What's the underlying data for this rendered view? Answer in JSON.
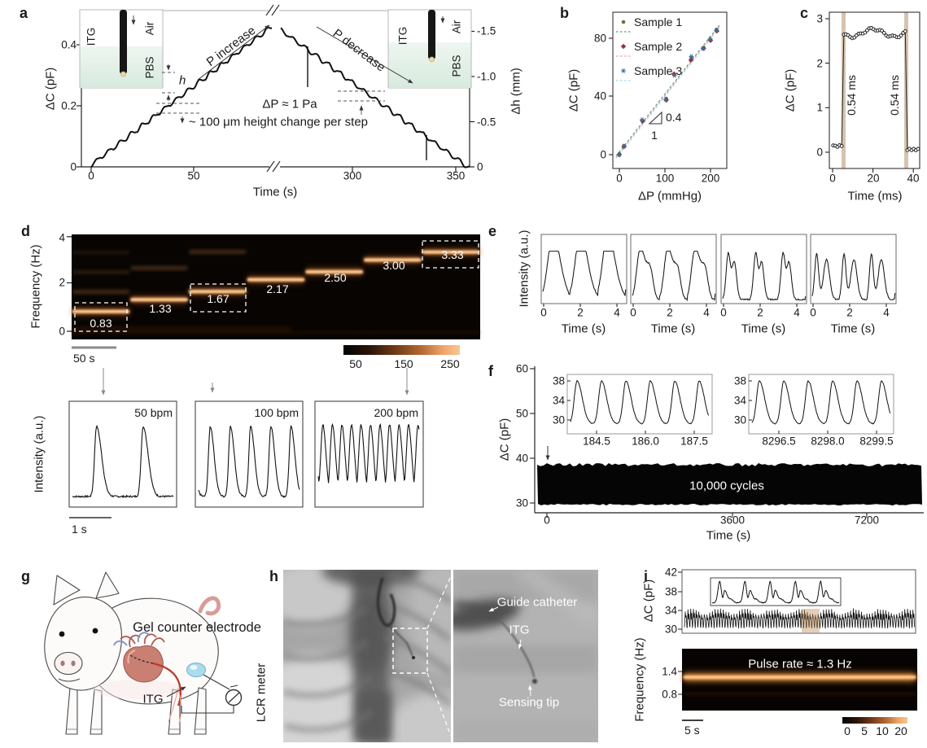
{
  "figure": {
    "background": "#ffffff"
  },
  "colors": {
    "pbs_fill": "#e7f2ea",
    "highlight_band": "#cdb49c",
    "spectrogram_hot": "#f5ad6e",
    "catheter_red": "#bf3b2b",
    "electrode_blue": "#abdbec",
    "sample1": "#5c7a2e",
    "sample2": "#96353c",
    "sample3": "#39719c"
  },
  "panels": {
    "a": {
      "label": "a",
      "ylabel_left": "ΔC (pF)",
      "ylabel_right": "Δh (mm)",
      "xlabel": "Time (s)",
      "annotations": {
        "p_increase": "P increase",
        "p_decrease": "P decrease",
        "delta_p": "ΔP ≈ 1 Pa",
        "step_note": "~ 100 μm height change per step",
        "h_marker": "h"
      },
      "inset_left": {
        "device": "ITG",
        "top_medium": "Air",
        "bottom_medium": "PBS"
      },
      "inset_right": {
        "device": "ITG",
        "top_medium": "Air",
        "bottom_medium": "PBS"
      }
    },
    "b": {
      "label": "b",
      "ylabel": "ΔC (pF)",
      "xlabel": "ΔP (mmHg)",
      "legend": [
        "Sample 1",
        "Sample 2",
        "Sample 3"
      ],
      "slope_rise": "0.4",
      "slope_run": "1"
    },
    "c": {
      "label": "c",
      "ylabel": "ΔC (pF)",
      "xlabel": "Time (ms)",
      "rise_label": "0.54 ms",
      "fall_label": "0.54 ms"
    },
    "d": {
      "label": "d",
      "ylabel": "Frequency (Hz)",
      "freq_labels": [
        "0.83",
        "1.33",
        "1.67",
        "2.17",
        "2.50",
        "3.00",
        "3.33"
      ],
      "scalebar": "50 s",
      "colorbar_ticks": [
        "50",
        "150",
        "250"
      ],
      "trace_ylabel": "Intensity (a.u.)",
      "trace_labels": [
        "50 bpm",
        "100 bpm",
        "200 bpm"
      ],
      "trace_scalebar": "1 s"
    },
    "e": {
      "label": "e",
      "ylabel": "Intensity (a.u.)",
      "xlabel": "Time (s)",
      "xticks": [
        "0",
        "2",
        "4"
      ]
    },
    "f": {
      "label": "f",
      "ylabel": "ΔC (pF)",
      "xlabel": "Time (s)",
      "yticks": [
        "30",
        "40",
        "50",
        "60"
      ],
      "xticks": [
        "0",
        "3600",
        "7200"
      ],
      "annotation": "10,000 cycles",
      "inset1": {
        "yticks": [
          "30",
          "34",
          "38"
        ],
        "xticks": [
          "184.5",
          "186.0",
          "187.5"
        ]
      },
      "inset2": {
        "yticks": [
          "30",
          "34",
          "38"
        ],
        "xticks": [
          "8296.5",
          "8298.0",
          "8299.5"
        ]
      }
    },
    "g": {
      "label": "g",
      "electrode_label": "Gel counter electrode",
      "device_label": "ITG",
      "meter_label": "LCR meter"
    },
    "h": {
      "label": "h",
      "guide_label": "Guide catheter",
      "device_label": "ITG",
      "tip_label": "Sensing tip"
    },
    "i": {
      "label": "i",
      "ylabel_top": "ΔC (pF)",
      "yticks_top": [
        "30",
        "34",
        "38",
        "42"
      ],
      "ylabel_bottom": "Frequency (Hz)",
      "yticks_bottom": [
        "0.8",
        "1.4"
      ],
      "annotation": "Pulse rate ≈ 1.3 Hz",
      "scalebar": "5 s",
      "colorbar_ticks": [
        "0",
        "5",
        "10",
        "20"
      ]
    }
  },
  "chart_data": [
    {
      "id": "a",
      "type": "line",
      "xlabel": "Time (s)",
      "ylabel_left": "ΔC (pF)",
      "ylabel_right": "Δh (mm)",
      "x_ticks": [
        "0",
        "50",
        "300",
        "350"
      ],
      "x_break_s": [
        88,
        265
      ],
      "y_left_ticks": [
        "0",
        "0.2",
        "0.4"
      ],
      "y_left_range": [
        0,
        0.52
      ],
      "y_right_ticks": [
        "-1.5",
        "-1.0",
        "-0.5",
        "0"
      ],
      "y_right_range": [
        -1.9,
        0
      ],
      "staircase": {
        "up": {
          "t_start": 0,
          "t_end": 88,
          "v_start": 0,
          "v_end": 0.455,
          "steps": 16
        },
        "down": {
          "t_start": 265,
          "t_end": 357,
          "v_start": 0.455,
          "v_end": 0,
          "steps": 16
        }
      },
      "pressure_step_pa": 1,
      "height_step_um": 100
    },
    {
      "id": "b",
      "type": "scatter",
      "xlabel": "ΔP (mmHg)",
      "ylabel": "ΔC (pF)",
      "x_ticks": [
        "0",
        "100",
        "200"
      ],
      "y_ticks": [
        "0",
        "40",
        "80"
      ],
      "slope": 0.4,
      "series": [
        {
          "name": "Sample 1",
          "marker": "circle",
          "marker_color": "#5c7a2e",
          "line_color": "#57a773",
          "x": [
            0,
            10,
            50,
            103,
            120,
            158,
            185,
            200,
            213
          ],
          "y": [
            0.5,
            6,
            23.5,
            38.5,
            55,
            66.5,
            73.5,
            79,
            86
          ]
        },
        {
          "name": "Sample 2",
          "marker": "diamond",
          "marker_color": "#96353c",
          "line_color": "#f0a3a3",
          "x": [
            0,
            10,
            51,
            103,
            120,
            157,
            185,
            200,
            214
          ],
          "y": [
            0,
            5.5,
            23,
            37.5,
            55.5,
            65,
            73,
            78.5,
            85
          ]
        },
        {
          "name": "Sample 3",
          "marker": "star",
          "marker_color": "#39719c",
          "line_color": "#a8d8ef",
          "x": [
            0,
            11,
            50,
            102,
            121,
            158,
            184,
            199,
            213
          ],
          "y": [
            0,
            6,
            24,
            38,
            54.5,
            67.5,
            73,
            79.5,
            85.5
          ]
        }
      ]
    },
    {
      "id": "c",
      "type": "line",
      "xlabel": "Time (ms)",
      "ylabel": "ΔC (pF)",
      "x_ticks": [
        "0",
        "20",
        "40"
      ],
      "y_ticks": [
        "0",
        "1",
        "2",
        "3"
      ],
      "baseline_pf": 0.14,
      "plateau_pf": 2.7,
      "rise_at_ms": 5.2,
      "fall_at_ms": 36.8,
      "rise_time_ms": 0.54,
      "fall_time_ms": 0.54
    },
    {
      "id": "d",
      "type": "spectrogram",
      "ylabel": "Frequency (Hz)",
      "y_ticks": [
        "0",
        "2",
        "4"
      ],
      "y_range": [
        0,
        4.35
      ],
      "segment_freqs_hz": [
        0.83,
        1.33,
        1.67,
        2.17,
        2.5,
        3.0,
        3.33
      ],
      "boxed_segments": [
        0,
        2,
        6
      ],
      "colorbar_ticks": [
        50,
        150,
        250
      ],
      "scalebar_s": 50,
      "traces": [
        {
          "label": "50 bpm",
          "bpm": 50,
          "peaks_shown": 2
        },
        {
          "label": "100 bpm",
          "bpm": 100,
          "peaks_shown": 5
        },
        {
          "label": "200 bpm",
          "bpm": 200,
          "peaks_shown": 11
        }
      ],
      "trace_scalebar_s": 1
    },
    {
      "id": "e",
      "type": "line",
      "xlabel": "Time (s)",
      "ylabel": "Intensity (a.u.)",
      "x_ticks": [
        "0",
        "2",
        "4"
      ],
      "x_range": [
        0,
        4.5
      ],
      "pulse_period_s": 1.5,
      "waveforms": [
        "smooth pulse",
        "pulse with shoulder",
        "double peak",
        "complex double peak"
      ]
    },
    {
      "id": "f",
      "type": "line",
      "xlabel": "Time (s)",
      "ylabel": "ΔC (pF)",
      "x_ticks": [
        "0",
        "3600",
        "7200"
      ],
      "y_ticks": [
        "30",
        "40",
        "50",
        "60"
      ],
      "oscillation_range_pf": [
        30,
        38.5
      ],
      "cycles_annotation": "10,000 cycles",
      "insets": [
        {
          "x_ticks": [
            184.5,
            186.0,
            187.5
          ],
          "y_ticks": [
            30,
            34,
            38
          ],
          "peaks_shown": 5
        },
        {
          "x_ticks": [
            8296.5,
            8298.0,
            8299.5
          ],
          "y_ticks": [
            30,
            34,
            38
          ],
          "peaks_shown": 5
        }
      ]
    },
    {
      "id": "i",
      "type": "line+spectrogram",
      "ylabel_top": "ΔC (pF)",
      "y_ticks_top": [
        30,
        34,
        38,
        42
      ],
      "trace_range_pf": [
        30,
        34
      ],
      "ylabel_bottom": "Frequency (Hz)",
      "y_ticks_bottom": [
        0.8,
        1.4
      ],
      "pulse_rate_hz": 1.3,
      "colorbar_ticks": [
        0,
        5,
        10,
        20
      ],
      "scalebar_s": 5
    }
  ]
}
